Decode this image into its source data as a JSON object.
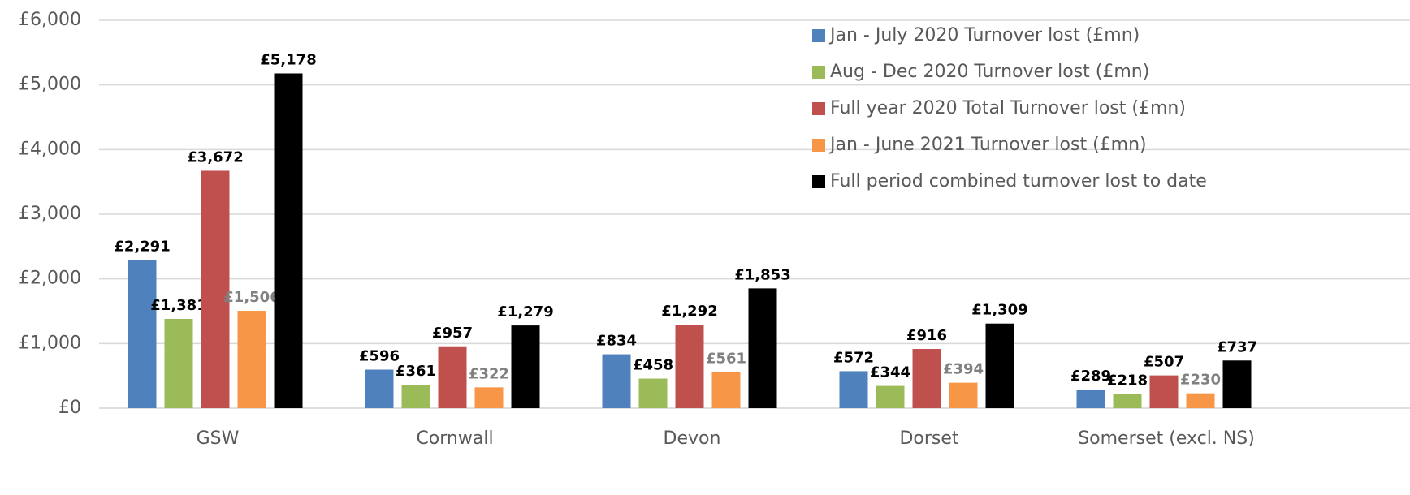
{
  "chart_data": {
    "type": "bar",
    "categories": [
      "GSW",
      "Cornwall",
      "Devon",
      "Dorset",
      "Somerset (excl. NS)"
    ],
    "series": [
      {
        "name": "Jan - July 2020 Turnover lost (£mn)",
        "color": "#4f81bd",
        "label_color": "#000000",
        "values": [
          2291,
          596,
          834,
          572,
          289
        ],
        "value_labels": [
          "£2,291",
          "£596",
          "£834",
          "£572",
          "£289"
        ]
      },
      {
        "name": "Aug - Dec 2020 Turnover lost (£mn)",
        "color": "#9bbb59",
        "label_color": "#000000",
        "values": [
          1381,
          361,
          458,
          344,
          218
        ],
        "value_labels": [
          "£1,381",
          "£361",
          "£458",
          "£344",
          "£218"
        ]
      },
      {
        "name": "Full year 2020 Total Turnover lost (£mn)",
        "color": "#c0504d",
        "label_color": "#000000",
        "values": [
          3672,
          957,
          1292,
          916,
          507
        ],
        "value_labels": [
          "£3,672",
          "£957",
          "£1,292",
          "£916",
          "£507"
        ]
      },
      {
        "name": "Jan - June 2021 Turnover lost (£mn)",
        "color": "#f79646",
        "label_color": "#808080",
        "values": [
          1506,
          322,
          561,
          394,
          230
        ],
        "value_labels": [
          "£1,506",
          "£322",
          "£561",
          "£394",
          "£230"
        ]
      },
      {
        "name": "Full period combined turnover lost to date",
        "color": "#000000",
        "label_color": "#000000",
        "values": [
          5178,
          1279,
          1853,
          1309,
          737
        ],
        "value_labels": [
          "£5,178",
          "£1,279",
          "£1,853",
          "£1,309",
          "£737"
        ]
      }
    ],
    "ylim": [
      0,
      6000
    ],
    "yticks": [
      {
        "value": 0,
        "label": "£0"
      },
      {
        "value": 1000,
        "label": "£1,000"
      },
      {
        "value": 2000,
        "label": "£2,000"
      },
      {
        "value": 3000,
        "label": "£3,000"
      },
      {
        "value": 4000,
        "label": "£4,000"
      },
      {
        "value": 5000,
        "label": "£5,000"
      },
      {
        "value": 6000,
        "label": "£6,000"
      }
    ],
    "grid": true,
    "legend": "top-right"
  }
}
